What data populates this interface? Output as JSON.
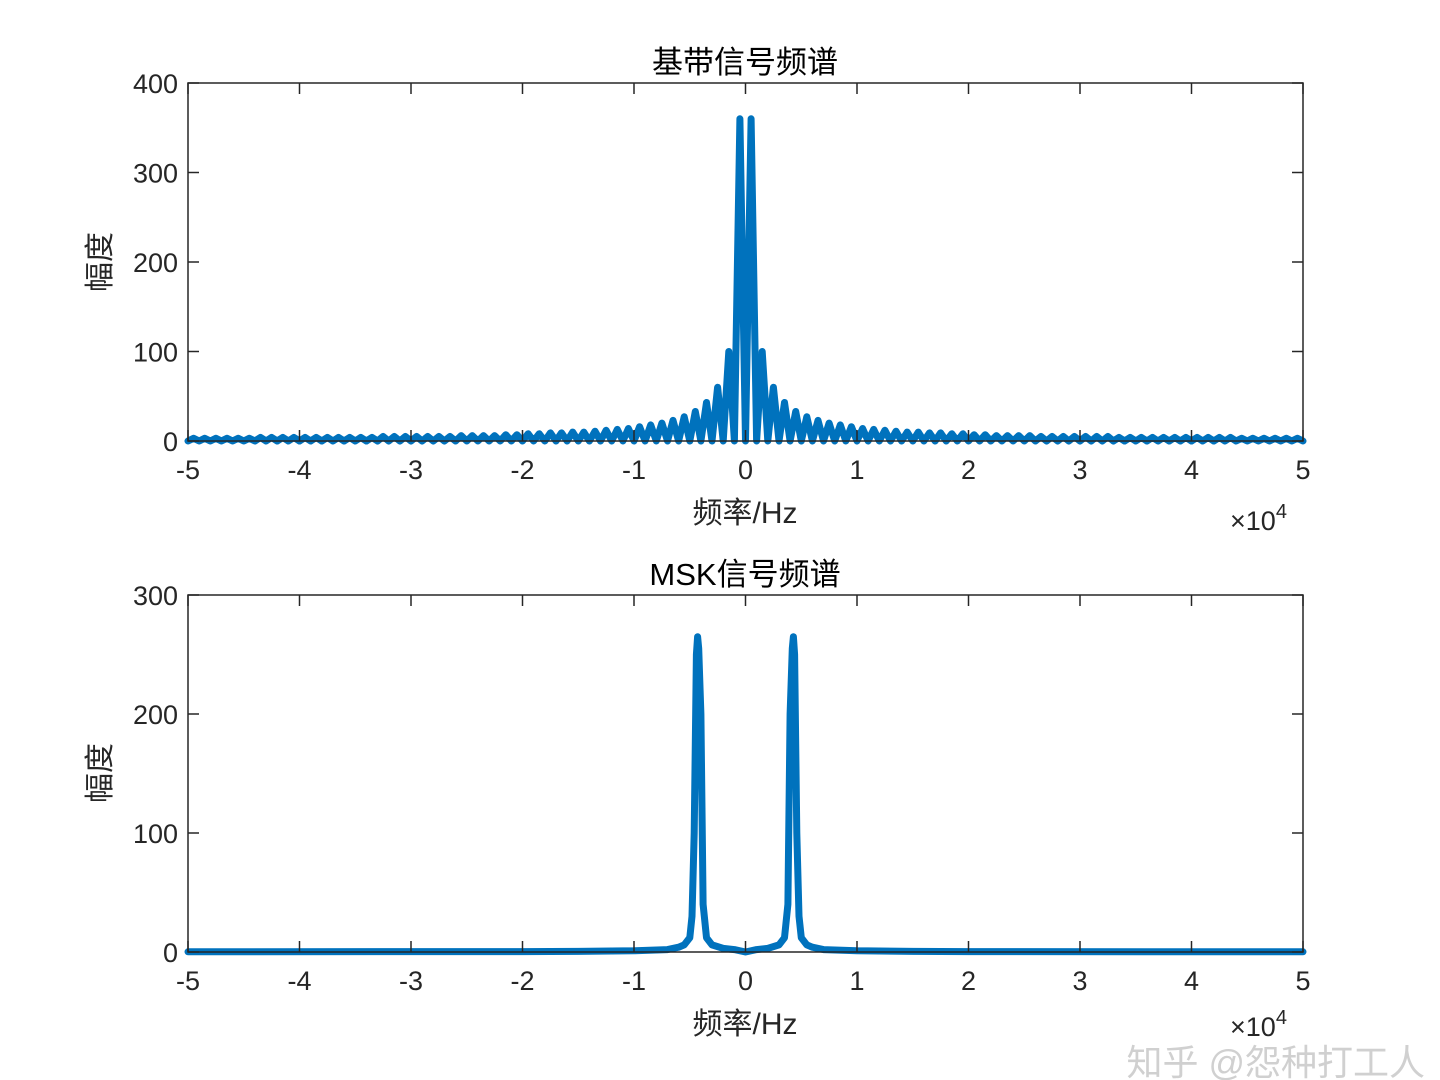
{
  "chart_data": [
    {
      "type": "line",
      "title": "基带信号频谱",
      "xlabel": "频率/Hz",
      "ylabel": "幅度",
      "x_exponent_label": "×10",
      "x_exponent": "4",
      "xlim": [
        -50000,
        50000
      ],
      "ylim": [
        0,
        400
      ],
      "xticks": [
        -50000,
        -40000,
        -30000,
        -20000,
        -10000,
        0,
        10000,
        20000,
        30000,
        40000,
        50000
      ],
      "xtick_labels": [
        "-5",
        "-4",
        "-3",
        "-2",
        "-1",
        "0",
        "1",
        "2",
        "3",
        "4",
        "5"
      ],
      "yticks": [
        0,
        100,
        200,
        300,
        400
      ],
      "ytick_labels": [
        "0",
        "100",
        "200",
        "300",
        "400"
      ],
      "grid": false,
      "color": "#0072BD",
      "x_start": -50000,
      "x_step": 500,
      "y": [
        0,
        3,
        0,
        3,
        0,
        3,
        0,
        3,
        0,
        3,
        0,
        3,
        0,
        4,
        0,
        4,
        0,
        4,
        0,
        4,
        0,
        4,
        0,
        4,
        0,
        4,
        0,
        4,
        0,
        4,
        0,
        4,
        0,
        4,
        0,
        5,
        0,
        5,
        0,
        5,
        0,
        5,
        0,
        5,
        0,
        5,
        0,
        5,
        0,
        6,
        0,
        6,
        0,
        6,
        0,
        6,
        0,
        7,
        0,
        7,
        0,
        8,
        0,
        8,
        0,
        9,
        0,
        9,
        0,
        10,
        0,
        10,
        0,
        11,
        0,
        12,
        0,
        13,
        0,
        14,
        0,
        16,
        0,
        18,
        0,
        20,
        0,
        23,
        0,
        27,
        0,
        33,
        0,
        43,
        0,
        60,
        0,
        100,
        0,
        360,
        0,
        360,
        0,
        100,
        0,
        60,
        0,
        43,
        0,
        33,
        0,
        27,
        0,
        23,
        0,
        20,
        0,
        18,
        0,
        16,
        0,
        14,
        0,
        13,
        0,
        12,
        0,
        11,
        0,
        10,
        0,
        10,
        0,
        9,
        0,
        9,
        0,
        8,
        0,
        8,
        0,
        7,
        0,
        7,
        0,
        6,
        0,
        6,
        0,
        6,
        0,
        6,
        0,
        5,
        0,
        5,
        0,
        5,
        0,
        5,
        0,
        5,
        0,
        5,
        0,
        5,
        0,
        4,
        0,
        4,
        0,
        4,
        0,
        4,
        0,
        4,
        0,
        4,
        0,
        4,
        0,
        4,
        0,
        4,
        0,
        4,
        0,
        4,
        0,
        3,
        0,
        3,
        0,
        3,
        0,
        3,
        0,
        3,
        0,
        3,
        0
      ]
    },
    {
      "type": "line",
      "title": "MSK信号频谱",
      "xlabel": "频率/Hz",
      "ylabel": "幅度",
      "x_exponent_label": "×10",
      "x_exponent": "4",
      "xlim": [
        -50000,
        50000
      ],
      "ylim": [
        0,
        300
      ],
      "xticks": [
        -50000,
        -40000,
        -30000,
        -20000,
        -10000,
        0,
        10000,
        20000,
        30000,
        40000,
        50000
      ],
      "xtick_labels": [
        "-5",
        "-4",
        "-3",
        "-2",
        "-1",
        "0",
        "1",
        "2",
        "3",
        "4",
        "5"
      ],
      "yticks": [
        0,
        100,
        200,
        300
      ],
      "ytick_labels": [
        "0",
        "100",
        "200",
        "300"
      ],
      "grid": false,
      "color": "#0072BD",
      "x": [
        -50000,
        -20000,
        -15000,
        -10000,
        -7000,
        -6000,
        -5500,
        -5000,
        -4800,
        -4600,
        -4400,
        -4300,
        -4200,
        -4000,
        -3800,
        -3500,
        -3000,
        -2000,
        -1000,
        0,
        1000,
        2000,
        3000,
        3500,
        3800,
        4000,
        4200,
        4300,
        4400,
        4600,
        4800,
        5000,
        5500,
        6000,
        7000,
        10000,
        15000,
        20000,
        50000
      ],
      "y": [
        0.2,
        0.3,
        0.5,
        1,
        2,
        4,
        6,
        12,
        30,
        100,
        250,
        265,
        255,
        200,
        40,
        12,
        6,
        3,
        2,
        0,
        2,
        3,
        6,
        12,
        40,
        200,
        255,
        265,
        250,
        100,
        30,
        12,
        6,
        4,
        2,
        1,
        0.5,
        0.3,
        0.2
      ]
    }
  ],
  "watermark": "知乎 @怨种打工人"
}
